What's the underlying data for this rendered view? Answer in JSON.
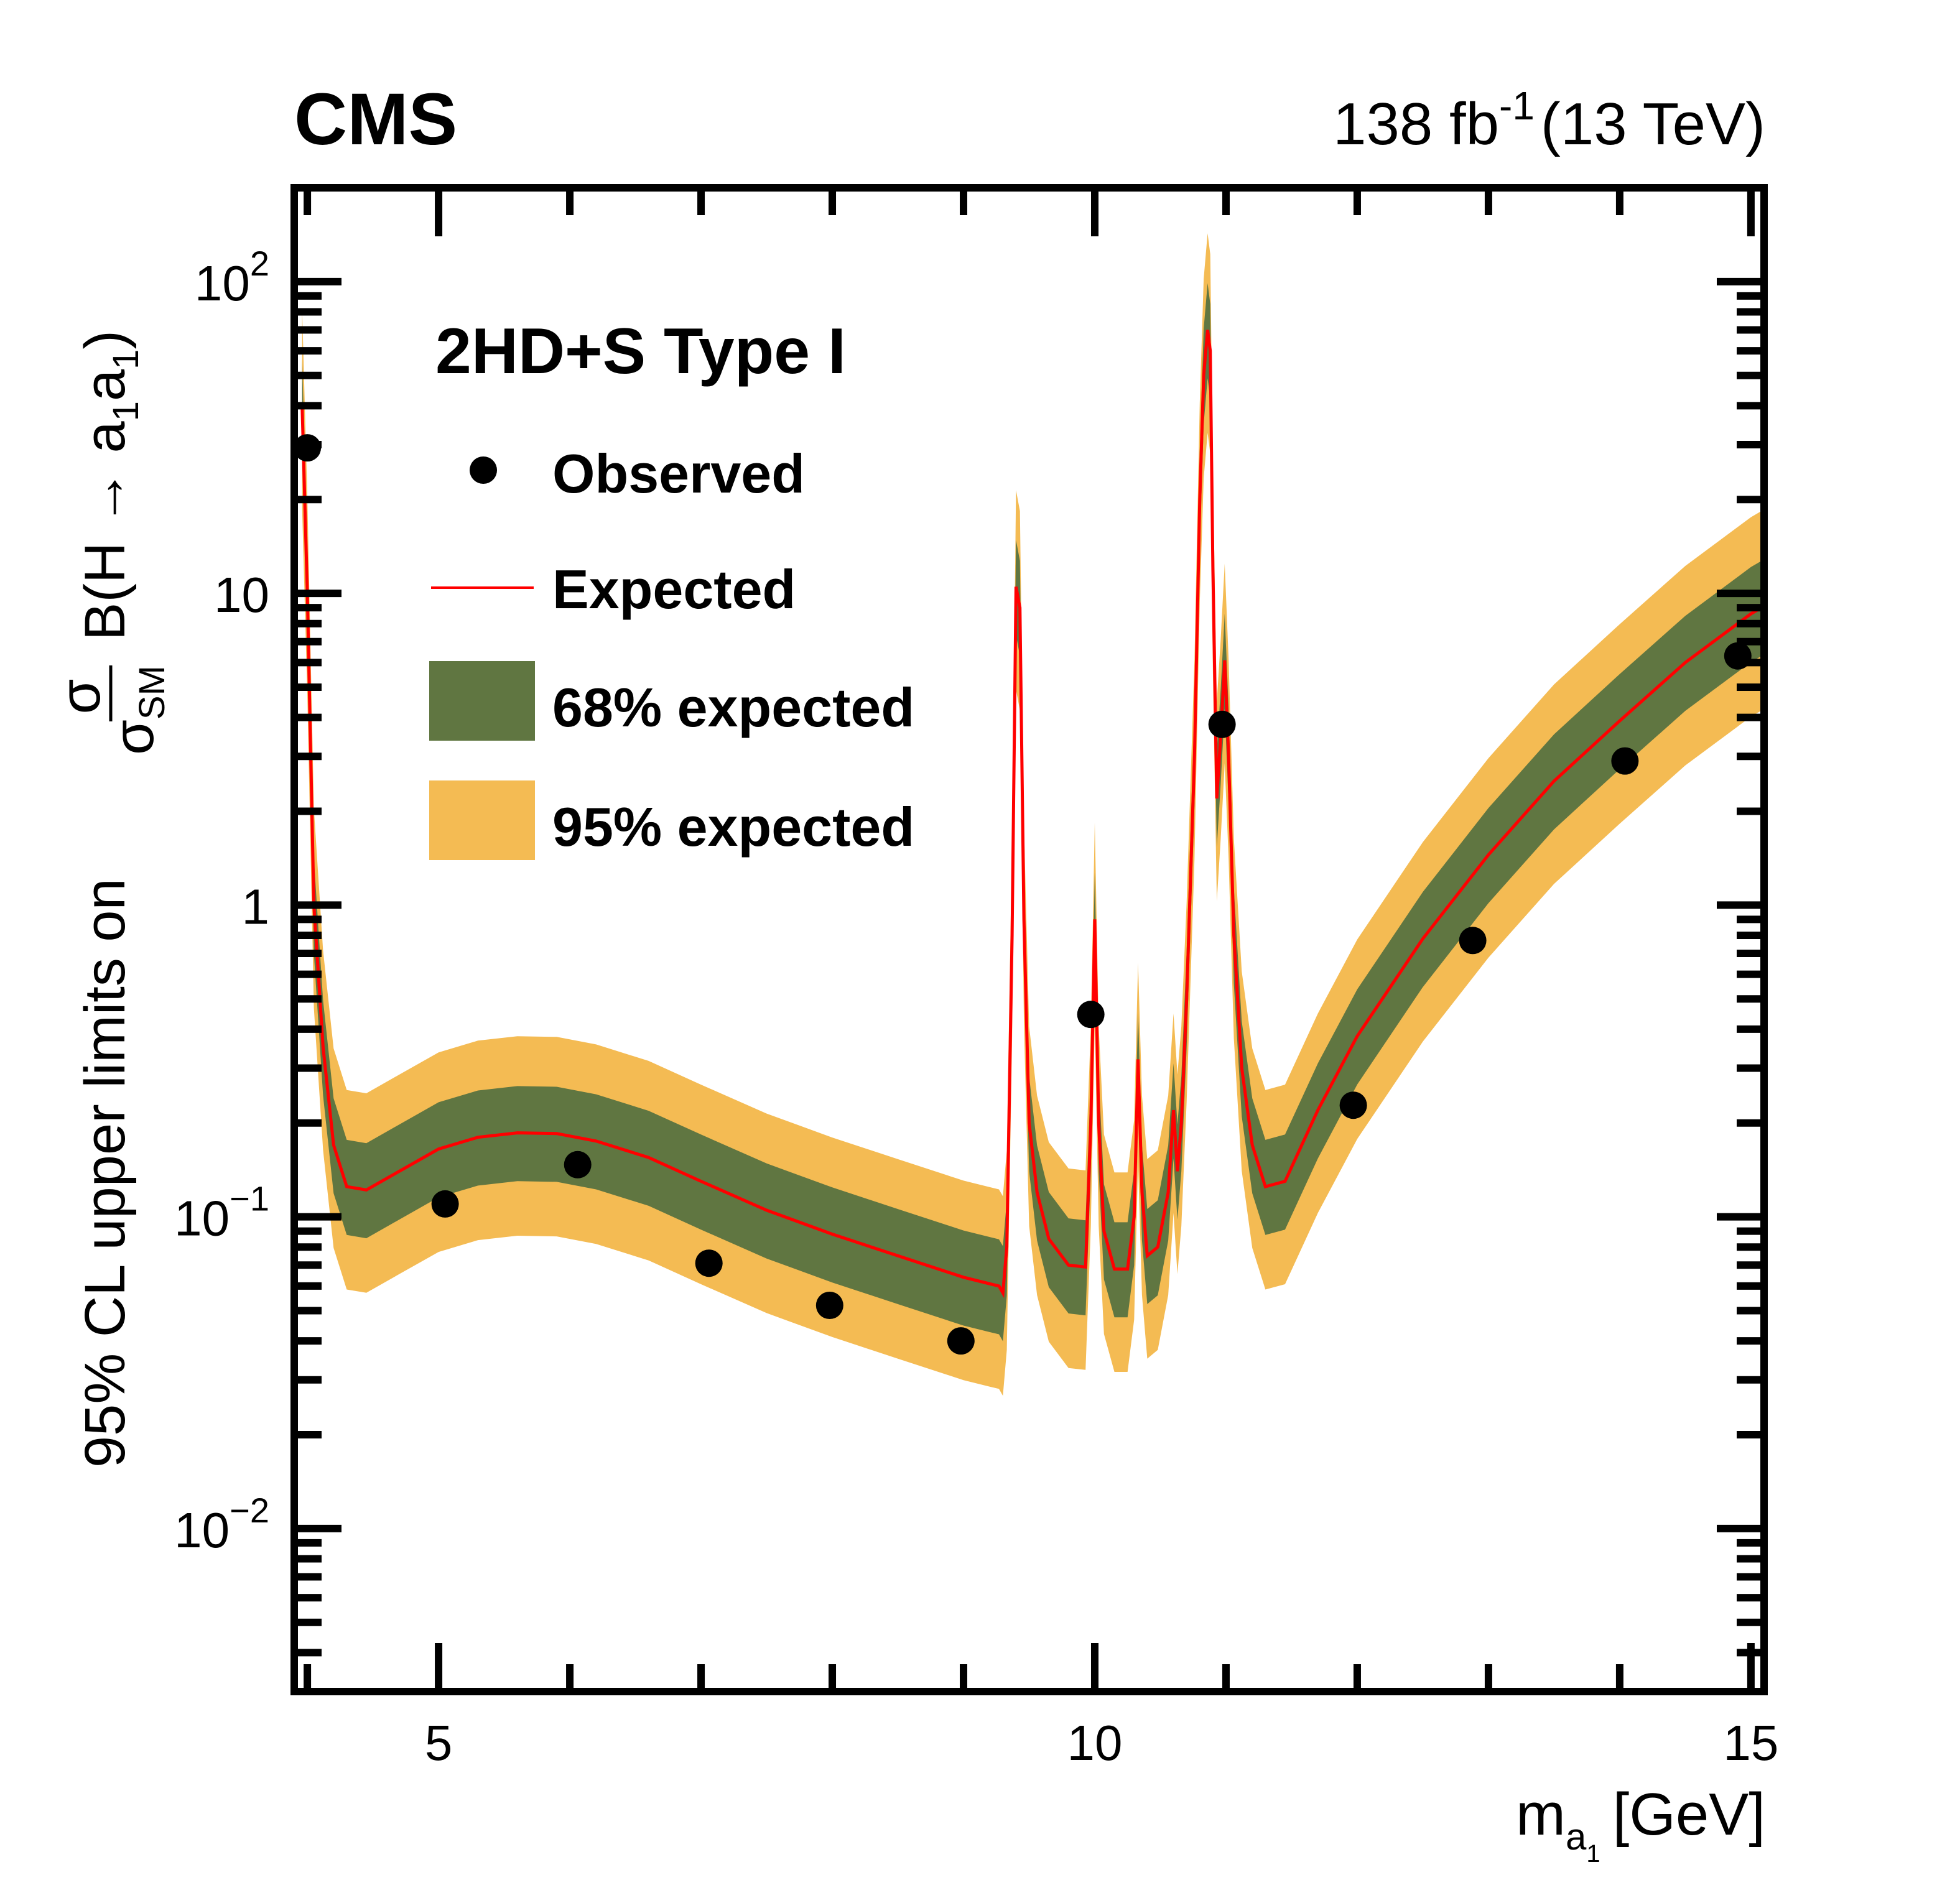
{
  "chart_data": {
    "type": "line",
    "experiment_label": "CMS",
    "lumi_label": {
      "value": "138",
      "unit": "fb",
      "unit_exponent": "-1",
      "energy": "(13 TeV)"
    },
    "model_label": "2HD+S Type I",
    "xlabel": {
      "main": "m",
      "sub1": "a",
      "sub2": "1",
      "unit": "[GeV]"
    },
    "ylabel": {
      "prefix": "95% CL upper limits on",
      "frac_num": "σ",
      "frac_den": "σ",
      "frac_den_sub": "SM",
      "suffix": "B(H → a",
      "suffix_sub1": "1",
      "suffix_mid": "a",
      "suffix_sub2": "1",
      "suffix_end": ")"
    },
    "xscale": "linear",
    "yscale": "log",
    "xlim": [
      3.9,
      15.1
    ],
    "ylim": [
      0.003,
      200
    ],
    "xticks": [
      {
        "value": 5,
        "label": "5"
      },
      {
        "value": 10,
        "label": "10"
      },
      {
        "value": 15,
        "label": "15"
      }
    ],
    "xminor_step": 1,
    "yticks": [
      {
        "value": 0.01,
        "base": "10",
        "exp": "−2"
      },
      {
        "value": 0.1,
        "base": "10",
        "exp": "−1"
      },
      {
        "value": 1,
        "base": "1",
        "exp": ""
      },
      {
        "value": 10,
        "base": "10",
        "exp": ""
      },
      {
        "value": 100,
        "base": "10",
        "exp": "2"
      }
    ],
    "grid": false,
    "legend": {
      "placement": "top-left",
      "entries": [
        {
          "label": "Observed",
          "kind": "marker"
        },
        {
          "label": "Expected",
          "kind": "line"
        },
        {
          "label": "68% expected",
          "kind": "box"
        },
        {
          "label": "95% expected",
          "kind": "box"
        }
      ]
    },
    "colors": {
      "observed": "#000000",
      "expected": "#ff0000",
      "band68": "#607641",
      "band95": "#f4bb53"
    },
    "observed": {
      "x": [
        4.0,
        5.05,
        6.06,
        7.06,
        7.98,
        8.98,
        9.97,
        10.97,
        11.97,
        12.88,
        14.04,
        14.9
      ],
      "y": [
        29.3,
        0.11,
        0.147,
        0.071,
        0.052,
        0.04,
        0.446,
        3.8,
        0.228,
        0.77,
        2.9,
        6.3
      ]
    },
    "expected": {
      "x": [
        3.96,
        4.0,
        4.05,
        4.12,
        4.2,
        4.3,
        4.45,
        4.7,
        5.0,
        5.3,
        5.6,
        5.9,
        6.2,
        6.6,
        7.0,
        7.5,
        8.0,
        8.5,
        9.0,
        9.2,
        9.27,
        9.3,
        9.33,
        9.37,
        9.4,
        9.43,
        9.46,
        9.5,
        9.56,
        9.65,
        9.8,
        9.93,
        9.97,
        10.0,
        10.03,
        10.07,
        10.15,
        10.25,
        10.3,
        10.33,
        10.36,
        10.4,
        10.48,
        10.56,
        10.6,
        10.63,
        10.66,
        10.7,
        10.76,
        10.8,
        10.83,
        10.86,
        10.88,
        10.9,
        10.93,
        10.96,
        10.99,
        11.02,
        11.06,
        11.12,
        11.2,
        11.3,
        11.45,
        11.7,
        12.0,
        12.5,
        13.0,
        13.5,
        14.0,
        14.5,
        15.0,
        15.1
      ],
      "y": [
        40,
        10,
        1.0,
        0.35,
        0.17,
        0.125,
        0.122,
        0.14,
        0.165,
        0.18,
        0.186,
        0.185,
        0.175,
        0.155,
        0.13,
        0.105,
        0.088,
        0.075,
        0.064,
        0.061,
        0.06,
        0.057,
        0.08,
        0.8,
        10.5,
        9,
        0.9,
        0.2,
        0.12,
        0.085,
        0.07,
        0.069,
        0.2,
        0.9,
        0.2,
        0.09,
        0.068,
        0.068,
        0.1,
        0.32,
        0.12,
        0.075,
        0.08,
        0.12,
        0.22,
        0.14,
        0.2,
        0.5,
        3.0,
        20,
        50,
        70,
        60,
        12,
        2.2,
        3.5,
        6.1,
        3.0,
        0.8,
        0.3,
        0.17,
        0.125,
        0.13,
        0.22,
        0.38,
        0.78,
        1.45,
        2.5,
        3.9,
        6.0,
        8.6,
        9.1
      ]
    },
    "band68_log_offsets": {
      "up": 0.15,
      "down": -0.155
    },
    "band95_log_offsets": {
      "up": 0.31,
      "down": -0.33
    }
  }
}
